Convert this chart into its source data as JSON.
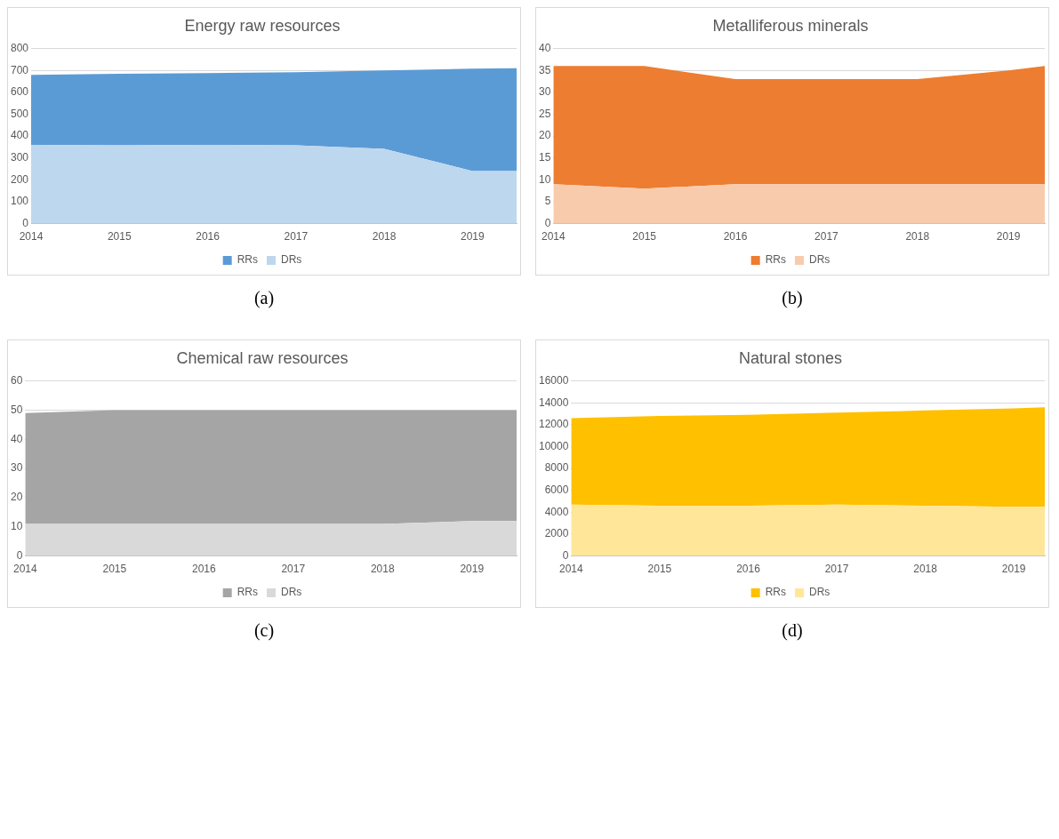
{
  "chart_data": [
    {
      "type": "area",
      "title": "Energy raw resources",
      "stacked": true,
      "x": [
        2014,
        2015,
        2016,
        2017,
        2018,
        2019,
        2019.5
      ],
      "xlim": [
        2014,
        2019.5
      ],
      "xticks": [
        2014,
        2015,
        2016,
        2017,
        2018,
        2019
      ],
      "ylim": [
        0,
        800
      ],
      "yticks": [
        0,
        100,
        200,
        300,
        400,
        500,
        600,
        700,
        800
      ],
      "grid": "y",
      "legend": "bottom",
      "annotations": [
        "(a)"
      ],
      "series": [
        {
          "name": "DRs",
          "color": "#bdd7ee",
          "values": [
            360,
            358,
            360,
            358,
            342,
            240,
            240
          ]
        },
        {
          "name": "RRs",
          "color": "#5b9bd5",
          "values": [
            320,
            327,
            328,
            334,
            358,
            468,
            470
          ]
        }
      ]
    },
    {
      "type": "area",
      "title": "Metalliferous minerals",
      "stacked": true,
      "x": [
        2014,
        2015,
        2016,
        2017,
        2018,
        2019,
        2019.4
      ],
      "xlim": [
        2014,
        2019.4
      ],
      "xticks": [
        2014,
        2015,
        2016,
        2017,
        2018,
        2019
      ],
      "ylim": [
        0,
        40
      ],
      "yticks": [
        0,
        5,
        10,
        15,
        20,
        25,
        30,
        35,
        40
      ],
      "grid": "y",
      "legend": "bottom",
      "annotations": [
        "(b)"
      ],
      "series": [
        {
          "name": "DRs",
          "color": "#f8cbad",
          "values": [
            9,
            8,
            9,
            9,
            9,
            9,
            9
          ]
        },
        {
          "name": "RRs",
          "color": "#ed7d31",
          "values": [
            27,
            28,
            24,
            24,
            24,
            26,
            27
          ]
        }
      ]
    },
    {
      "type": "area",
      "title": "Chemical raw resources",
      "stacked": true,
      "x": [
        2014,
        2015,
        2016,
        2017,
        2018,
        2019,
        2019.5
      ],
      "xlim": [
        2014,
        2019.5
      ],
      "xticks": [
        2014,
        2015,
        2016,
        2017,
        2018,
        2019
      ],
      "ylim": [
        0,
        60
      ],
      "yticks": [
        0,
        10,
        20,
        30,
        40,
        50,
        60
      ],
      "grid": "y",
      "legend": "bottom",
      "annotations": [
        "(c)"
      ],
      "series": [
        {
          "name": "DRs",
          "color": "#d9d9d9",
          "values": [
            11,
            11,
            11,
            11,
            11,
            12,
            12
          ]
        },
        {
          "name": "RRs",
          "color": "#a5a5a5",
          "values": [
            38,
            39,
            39,
            39,
            39,
            38,
            38
          ]
        }
      ]
    },
    {
      "type": "area",
      "title": "Natural stones",
      "stacked": true,
      "x": [
        2014,
        2015,
        2016,
        2017,
        2018,
        2019,
        2019.35
      ],
      "xlim": [
        2014,
        2019.35
      ],
      "xticks": [
        2014,
        2015,
        2016,
        2017,
        2018,
        2019
      ],
      "ylim": [
        0,
        16000
      ],
      "yticks": [
        0,
        2000,
        4000,
        6000,
        8000,
        10000,
        12000,
        14000,
        16000
      ],
      "grid": "y",
      "legend": "bottom",
      "annotations": [
        "(d)"
      ],
      "series": [
        {
          "name": "DRs",
          "color": "#ffe699",
          "values": [
            4700,
            4600,
            4600,
            4700,
            4600,
            4500,
            4500
          ]
        },
        {
          "name": "RRs",
          "color": "#ffc000",
          "values": [
            7900,
            8200,
            8300,
            8400,
            8700,
            9000,
            9100
          ]
        }
      ]
    }
  ]
}
